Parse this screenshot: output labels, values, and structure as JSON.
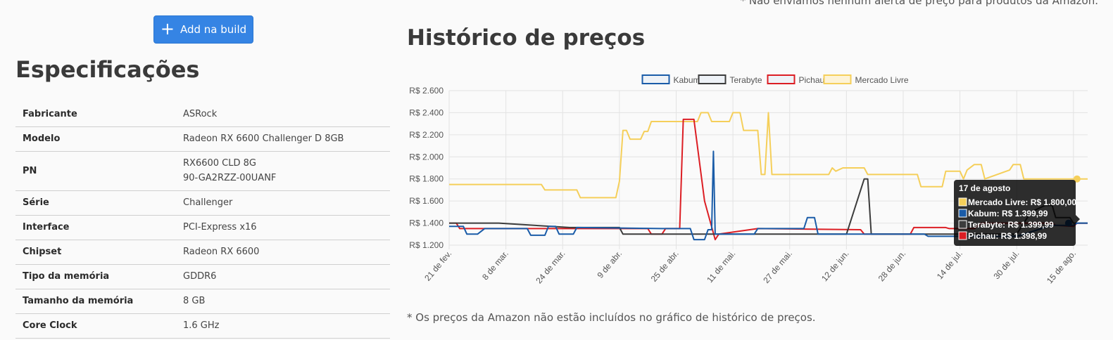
{
  "header": {
    "amazon_note": "* Não enviamos nenhum alerta de preço para produtos da Amazon.",
    "add_button_label": "Add na build"
  },
  "specs": {
    "title": "Especificações",
    "rows": [
      {
        "key": "Fabricante",
        "value": "ASRock"
      },
      {
        "key": "Modelo",
        "value": "Radeon RX 6600 Challenger D 8GB"
      },
      {
        "key": "PN",
        "value": "RX6600 CLD 8G",
        "value2": "90-GA2RZZ-00UANF"
      },
      {
        "key": "Série",
        "value": "Challenger"
      },
      {
        "key": "Interface",
        "value": "PCI-Express x16"
      },
      {
        "key": "Chipset",
        "value": "Radeon RX 6600"
      },
      {
        "key": "Tipo da memória",
        "value": "GDDR6"
      },
      {
        "key": "Tamanho da memória",
        "value": "8 GB"
      },
      {
        "key": "Core Clock",
        "value": "1.6 GHz"
      }
    ]
  },
  "history": {
    "title": "Histórico de preços",
    "footnote": "* Os preços da Amazon não estão incluídos no gráfico de histórico de preços."
  },
  "chart_data": {
    "type": "line",
    "title": "",
    "xlabel": "",
    "ylabel": "",
    "ylim": [
      1200,
      2600
    ],
    "yticks": [
      1200,
      1400,
      1600,
      1800,
      2000,
      2200,
      2400,
      2600
    ],
    "ytick_labels": [
      "R$ 1.200",
      "R$ 1.400",
      "R$ 1.600",
      "R$ 1.800",
      "R$ 2.000",
      "R$ 2.200",
      "R$ 2.400",
      "R$ 2.600"
    ],
    "xlim": [
      0,
      180
    ],
    "xticks": [
      0,
      16,
      32,
      48,
      64,
      80,
      96,
      112,
      128,
      144,
      160,
      176
    ],
    "xtick_labels": [
      "21 de fev.",
      "8 de mar.",
      "24 de mar.",
      "9 de abr.",
      "25 de abr.",
      "11 de mai.",
      "27 de mai.",
      "12 de jun.",
      "28 de jun.",
      "14 de jul.",
      "30 de jul.",
      "15 de ago."
    ],
    "grid": true,
    "legend": "top-center",
    "series": [
      {
        "name": "Kabum",
        "color": "#1a5ca8",
        "points": [
          [
            0,
            1370
          ],
          [
            3,
            1370
          ],
          [
            4,
            1370
          ],
          [
            5,
            1300
          ],
          [
            8,
            1300
          ],
          [
            10,
            1350
          ],
          [
            22,
            1350
          ],
          [
            23,
            1290
          ],
          [
            27,
            1290
          ],
          [
            28,
            1370
          ],
          [
            30,
            1370
          ],
          [
            31,
            1300
          ],
          [
            35,
            1300
          ],
          [
            36,
            1360
          ],
          [
            60,
            1350
          ],
          [
            68,
            1350
          ],
          [
            69,
            1250
          ],
          [
            72,
            1250
          ],
          [
            73,
            1340
          ],
          [
            74,
            1340
          ],
          [
            74.5,
            2050
          ],
          [
            75,
            1300
          ],
          [
            86,
            1300
          ],
          [
            87,
            1350
          ],
          [
            100,
            1350
          ],
          [
            101,
            1450
          ],
          [
            103,
            1450
          ],
          [
            104,
            1300
          ],
          [
            134,
            1300
          ],
          [
            135,
            1280
          ],
          [
            160,
            1280
          ],
          [
            170,
            1380
          ],
          [
            176,
            1380
          ],
          [
            177,
            1399.99
          ],
          [
            180,
            1399.99
          ]
        ]
      },
      {
        "name": "Terabyte",
        "color": "#3c3c3c",
        "points": [
          [
            0,
            1400
          ],
          [
            14,
            1400
          ],
          [
            34,
            1360
          ],
          [
            48,
            1360
          ],
          [
            49,
            1300
          ],
          [
            110,
            1300
          ],
          [
            112,
            1300
          ],
          [
            117,
            1800
          ],
          [
            118,
            1800
          ],
          [
            119,
            1300
          ],
          [
            160,
            1300
          ],
          [
            164,
            1500
          ],
          [
            168,
            1560
          ],
          [
            170,
            1560
          ],
          [
            171,
            1450
          ],
          [
            175,
            1450
          ],
          [
            176,
            1399.99
          ],
          [
            180,
            1399.99
          ]
        ]
      },
      {
        "name": "Pichau",
        "color": "#dc1e24",
        "points": [
          [
            0,
            1400
          ],
          [
            2,
            1400
          ],
          [
            3,
            1350
          ],
          [
            56,
            1350
          ],
          [
            57,
            1300
          ],
          [
            60,
            1300
          ],
          [
            61,
            1350
          ],
          [
            65,
            1350
          ],
          [
            66,
            2340
          ],
          [
            69,
            2340
          ],
          [
            72,
            1600
          ],
          [
            75,
            1250
          ],
          [
            76,
            1300
          ],
          [
            87,
            1350
          ],
          [
            116,
            1340
          ],
          [
            117,
            1300
          ],
          [
            130,
            1300
          ],
          [
            131,
            1360
          ],
          [
            140,
            1360
          ],
          [
            141,
            1350
          ],
          [
            148,
            1350
          ],
          [
            150,
            1400
          ],
          [
            170,
            1400
          ],
          [
            171,
            1380
          ],
          [
            176,
            1370
          ],
          [
            177,
            1398.99
          ],
          [
            180,
            1398.99
          ]
        ]
      },
      {
        "name": "Mercado Livre",
        "color": "#f5cf5a",
        "points": [
          [
            0,
            1750
          ],
          [
            26,
            1750
          ],
          [
            27,
            1700
          ],
          [
            36,
            1700
          ],
          [
            37,
            1630
          ],
          [
            47,
            1630
          ],
          [
            48,
            1780
          ],
          [
            49,
            2240
          ],
          [
            50,
            2240
          ],
          [
            51,
            2160
          ],
          [
            54,
            2160
          ],
          [
            55,
            2230
          ],
          [
            56,
            2230
          ],
          [
            57,
            2320
          ],
          [
            63,
            2320
          ],
          [
            70,
            2320
          ],
          [
            71,
            2400
          ],
          [
            73,
            2400
          ],
          [
            74,
            2320
          ],
          [
            79,
            2320
          ],
          [
            80,
            2400
          ],
          [
            82,
            2400
          ],
          [
            83,
            2240
          ],
          [
            87,
            2240
          ],
          [
            88,
            1840
          ],
          [
            89,
            1840
          ],
          [
            90,
            2400
          ],
          [
            91,
            1840
          ],
          [
            107,
            1840
          ],
          [
            108,
            1900
          ],
          [
            109,
            1870
          ],
          [
            111,
            1900
          ],
          [
            117,
            1900
          ],
          [
            118,
            1840
          ],
          [
            132,
            1840
          ],
          [
            133,
            1730
          ],
          [
            139,
            1730
          ],
          [
            140,
            1870
          ],
          [
            144,
            1870
          ],
          [
            145,
            1800
          ],
          [
            146,
            1880
          ],
          [
            148,
            1930
          ],
          [
            150,
            1930
          ],
          [
            151,
            1800
          ],
          [
            158,
            1880
          ],
          [
            159,
            1930
          ],
          [
            161,
            1930
          ],
          [
            162,
            1800
          ],
          [
            176,
            1800
          ],
          [
            180,
            1800
          ]
        ]
      }
    ],
    "tooltip": {
      "title": "17 de agosto",
      "lines": [
        {
          "series": "Mercado Livre",
          "label": "Mercado Livre: R$ 1.800,00",
          "color": "#f5cf5a"
        },
        {
          "series": "Kabum",
          "label": "Kabum: R$ 1.399,99",
          "color": "#1a5ca8"
        },
        {
          "series": "Terabyte",
          "label": "Terabyte: R$ 1.399,99",
          "color": "#3c3c3c"
        },
        {
          "series": "Pichau",
          "label": "Pichau: R$ 1.398,99",
          "color": "#dc1e24"
        }
      ],
      "x": 177
    }
  }
}
